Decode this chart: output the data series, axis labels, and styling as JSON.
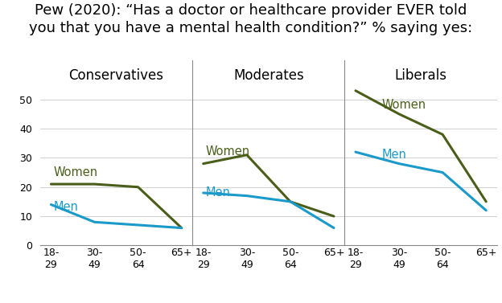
{
  "title": "Pew (2020): “Has a doctor or healthcare provider EVER told\nyou that you have a mental health condition?” % saying yes:",
  "groups": [
    "Conservatives",
    "Moderates",
    "Liberals"
  ],
  "x_labels": [
    "18-\n29",
    "30-\n49",
    "50-\n64",
    "65+"
  ],
  "x_ticks": [
    0,
    1,
    2,
    3
  ],
  "women_values": [
    [
      21,
      21,
      20,
      6
    ],
    [
      28,
      31,
      15,
      10
    ],
    [
      53,
      45,
      38,
      15
    ]
  ],
  "men_values": [
    [
      14,
      8,
      7,
      6
    ],
    [
      18,
      17,
      15,
      6
    ],
    [
      32,
      28,
      25,
      12
    ]
  ],
  "women_color": "#4a5e1a",
  "men_color": "#1a9ac9",
  "ylim": [
    0,
    55
  ],
  "yticks": [
    0,
    10,
    20,
    30,
    40,
    50
  ],
  "background_color": "#ffffff",
  "line_width": 2.2,
  "title_fontsize": 13,
  "panel_title_fontsize": 12,
  "label_fontsize": 10.5
}
